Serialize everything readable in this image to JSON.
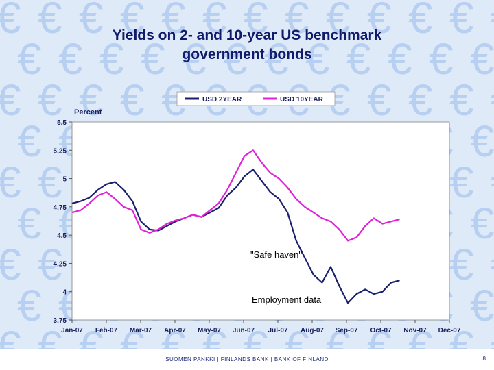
{
  "slide": {
    "title_line1": "Yields on 2- and 10-year US benchmark",
    "title_line2": "government bonds",
    "footer": "SUOMEN PANKKI | FINLANDS BANK | BANK OF FINLAND",
    "page_number": "8"
  },
  "background": {
    "pattern_glyph": "€",
    "color": "#b7cff0"
  },
  "chart_data": {
    "type": "line",
    "ylabel": "Percent",
    "ylim": [
      3.75,
      5.5
    ],
    "yticks": [
      "5.5",
      "5.25",
      "5",
      "4.75",
      "4.5",
      "4.25",
      "4",
      "3.75"
    ],
    "yvalues": [
      5.5,
      5.25,
      5.0,
      4.75,
      4.5,
      4.25,
      4.0,
      3.75
    ],
    "xticks": [
      "Jan-07",
      "Feb-07",
      "Mar-07",
      "Apr-07",
      "May-07",
      "Jun-07",
      "Jul-07",
      "Aug-07",
      "Sep-07",
      "Oct-07",
      "Nov-07",
      "Dec-07"
    ],
    "legend_position": "top",
    "annotations": [
      "\"Safe haven\"",
      "Employment data"
    ],
    "series": [
      {
        "name": "USD 2YEAR",
        "color": "#1a1f6e",
        "values": [
          4.78,
          4.8,
          4.83,
          4.9,
          4.95,
          4.97,
          4.9,
          4.8,
          4.62,
          4.55,
          4.54,
          4.58,
          4.62,
          4.65,
          4.68,
          4.66,
          4.7,
          4.74,
          4.85,
          4.92,
          5.02,
          5.08,
          4.98,
          4.88,
          4.82,
          4.7,
          4.45,
          4.3,
          4.15,
          4.08,
          4.22,
          4.05,
          3.9,
          3.98,
          4.02,
          3.98,
          4.0,
          4.08,
          4.1
        ]
      },
      {
        "name": "USD 10YEAR",
        "color": "#e021d8",
        "values": [
          4.7,
          4.72,
          4.78,
          4.85,
          4.88,
          4.82,
          4.75,
          4.72,
          4.55,
          4.52,
          4.55,
          4.6,
          4.63,
          4.65,
          4.68,
          4.66,
          4.72,
          4.78,
          4.9,
          5.05,
          5.2,
          5.25,
          5.14,
          5.05,
          5.0,
          4.92,
          4.82,
          4.75,
          4.7,
          4.65,
          4.62,
          4.55,
          4.45,
          4.48,
          4.58,
          4.65,
          4.6,
          4.62,
          4.64
        ]
      }
    ]
  }
}
